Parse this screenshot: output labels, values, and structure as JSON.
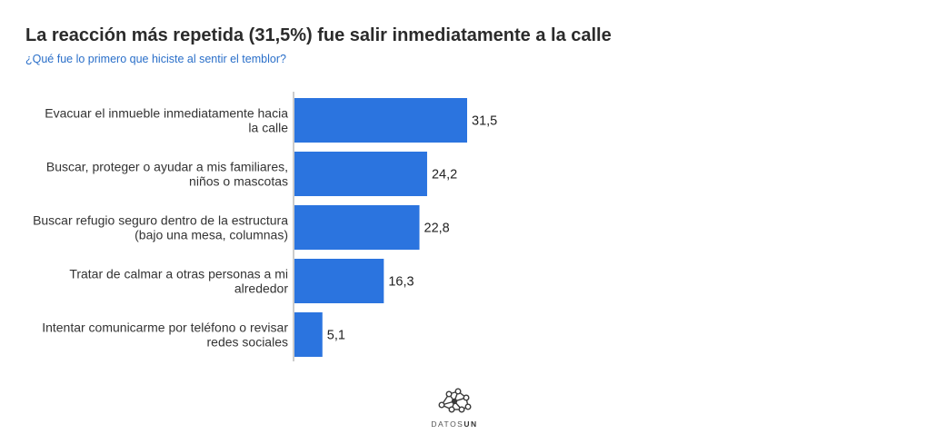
{
  "header": {
    "title": "La reacción más repetida (31,5%) fue salir inmediatamente a la calle",
    "subtitle": "¿Qué fue lo primero que hiciste al sentir el temblor?"
  },
  "chart_data": {
    "type": "bar",
    "orientation": "horizontal",
    "title": "La reacción más repetida (31,5%) fue salir inmediatamente a la calle",
    "subtitle": "¿Qué fue lo primero que hiciste al sentir el temblor?",
    "xlabel": "",
    "ylabel": "",
    "categories": [
      [
        "Evacuar el inmueble inmediatamente hacia",
        "la calle"
      ],
      [
        "Buscar, proteger o ayudar a mis familiares,",
        "niños o mascotas"
      ],
      [
        "Buscar refugio seguro dentro de la estructura",
        "(bajo una mesa, columnas)"
      ],
      [
        "Tratar de calmar a otras personas a mi",
        "alrededor"
      ],
      [
        "Intentar comunicarme por teléfono o revisar",
        "redes sociales"
      ]
    ],
    "values": [
      31.5,
      24.2,
      22.8,
      16.3,
      5.1
    ],
    "value_labels": [
      "31,5",
      "24,2",
      "22,8",
      "16,3",
      "5,1"
    ],
    "xlim": [
      0,
      60
    ],
    "grid": false,
    "legend": "none",
    "bar_color": "#2b74df"
  },
  "logo": {
    "text_light": "DATOS",
    "text_bold": "UN",
    "icon": "network-nodes-icon"
  }
}
